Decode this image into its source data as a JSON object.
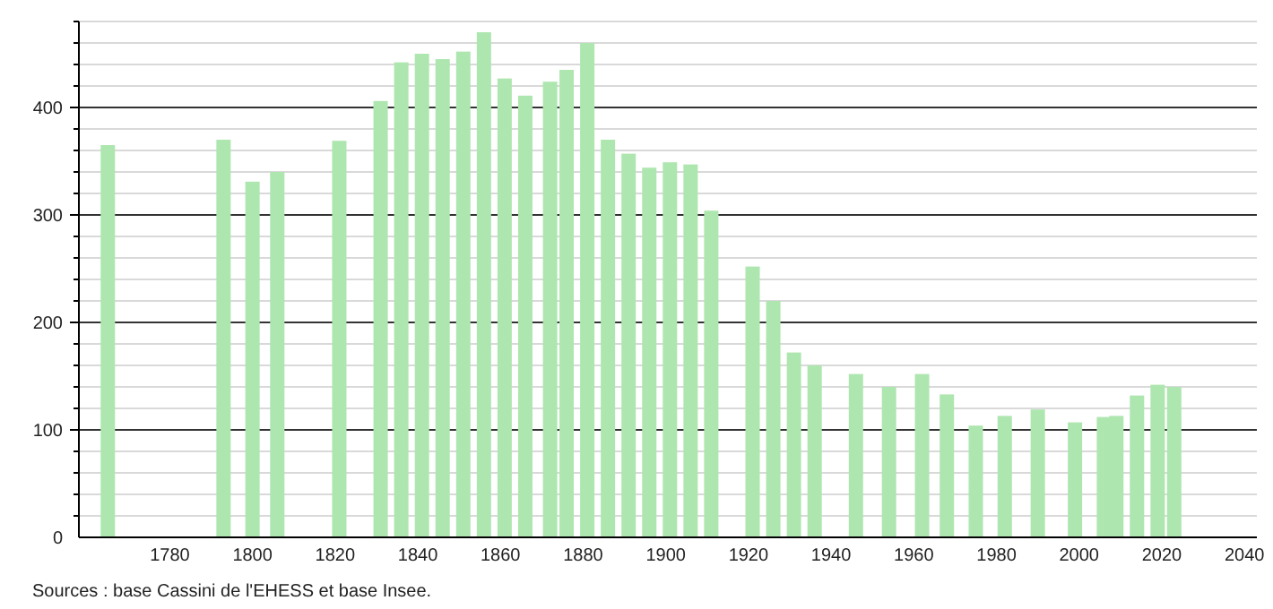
{
  "chart_data": {
    "type": "bar",
    "color": "#aee6b0",
    "x": [
      1765,
      1793,
      1800,
      1806,
      1821,
      1831,
      1836,
      1841,
      1846,
      1851,
      1856,
      1861,
      1866,
      1872,
      1876,
      1881,
      1886,
      1891,
      1896,
      1901,
      1906,
      1911,
      1921,
      1926,
      1931,
      1936,
      1946,
      1954,
      1962,
      1968,
      1975,
      1982,
      1990,
      1999,
      2006,
      2009,
      2014,
      2019,
      2023
    ],
    "values": [
      365,
      370,
      331,
      340,
      369,
      406,
      442,
      450,
      445,
      452,
      470,
      427,
      411,
      424,
      435,
      460,
      370,
      357,
      344,
      349,
      347,
      304,
      252,
      220,
      172,
      160,
      152,
      140,
      152,
      133,
      104,
      113,
      119,
      107,
      112,
      113,
      132,
      142,
      140
    ],
    "xlim": [
      1758,
      2043
    ],
    "xticks": [
      1780,
      1800,
      1820,
      1840,
      1860,
      1880,
      1900,
      1920,
      1940,
      1960,
      1980,
      2000,
      2020,
      2040
    ],
    "ylim": [
      0,
      480
    ],
    "yticks": [
      0,
      {
        "value": 20,
        "label": null
      },
      {
        "value": 40,
        "label": null
      },
      {
        "value": 60,
        "label": null
      },
      {
        "value": 80,
        "label": null
      },
      100,
      {
        "value": 120,
        "label": null
      },
      {
        "value": 140,
        "label": null
      },
      {
        "value": 160,
        "label": null
      },
      {
        "value": 180,
        "label": null
      },
      200,
      {
        "value": 220,
        "label": null
      },
      {
        "value": 240,
        "label": null
      },
      {
        "value": 260,
        "label": null
      },
      {
        "value": 280,
        "label": null
      },
      300,
      {
        "value": 320,
        "label": null
      },
      {
        "value": 340,
        "label": null
      },
      {
        "value": 360,
        "label": null
      },
      {
        "value": 380,
        "label": null
      },
      400,
      {
        "value": 420,
        "label": null
      },
      {
        "value": 440,
        "label": null
      },
      {
        "value": 460,
        "label": null
      },
      {
        "value": 480,
        "label": null
      }
    ],
    "grid": true,
    "annotations": [
      "Sources : base Cassini de l'EHESS et base Insee."
    ]
  }
}
